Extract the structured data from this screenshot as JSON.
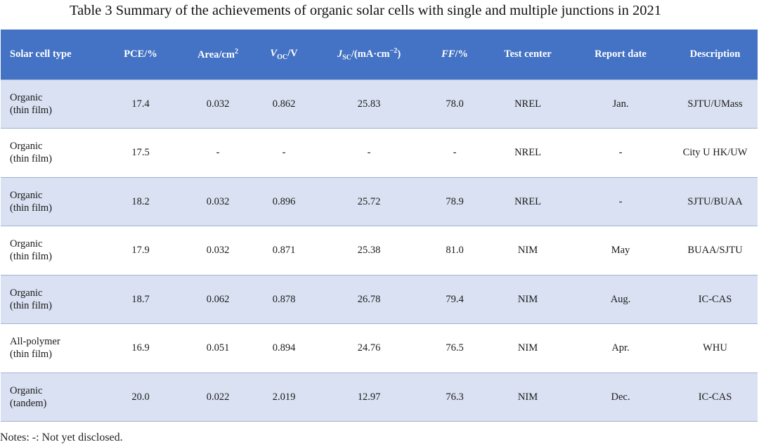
{
  "caption": "Table 3 Summary of the achievements of organic solar cells with single and multiple junctions in 2021",
  "headers": {
    "type": "Solar cell type",
    "pce": "PCE/%",
    "area": "Area/cm",
    "area_sup": "2",
    "voc_main": "V",
    "voc_sub": "OC",
    "voc_unit": "/V",
    "jsc_main": "J",
    "jsc_sub": "SC",
    "jsc_unit": "/(mA·cm",
    "jsc_sup": "−2",
    "jsc_close": ")",
    "ff": "FF",
    "ff_unit": "/%",
    "center": "Test center",
    "date": "Report date",
    "desc": "Description"
  },
  "rows": [
    {
      "type1": "Organic",
      "type2": "(thin film)",
      "pce": "17.4",
      "area": "0.032",
      "voc": "0.862",
      "jsc": "25.83",
      "ff": "78.0",
      "center": "NREL",
      "date": "Jan.",
      "desc": "SJTU/UMass"
    },
    {
      "type1": "Organic",
      "type2": "(thin film)",
      "pce": "17.5",
      "area": "-",
      "voc": "-",
      "jsc": "-",
      "ff": "-",
      "center": "NREL",
      "date": "-",
      "desc": "City U HK/UW"
    },
    {
      "type1": "Organic",
      "type2": "(thin film)",
      "pce": "18.2",
      "area": "0.032",
      "voc": "0.896",
      "jsc": "25.72",
      "ff": "78.9",
      "center": "NREL",
      "date": "-",
      "desc": "SJTU/BUAA"
    },
    {
      "type1": "Organic",
      "type2": "(thin film)",
      "pce": "17.9",
      "area": "0.032",
      "voc": "0.871",
      "jsc": "25.38",
      "ff": "81.0",
      "center": "NIM",
      "date": "May",
      "desc": "BUAA/SJTU"
    },
    {
      "type1": "Organic",
      "type2": "(thin film)",
      "pce": "18.7",
      "area": "0.062",
      "voc": "0.878",
      "jsc": "26.78",
      "ff": "79.4",
      "center": "NIM",
      "date": "Aug.",
      "desc": "IC-CAS"
    },
    {
      "type1": "All-polymer",
      "type2": "(thin film)",
      "pce": "16.9",
      "area": "0.051",
      "voc": "0.894",
      "jsc": "24.76",
      "ff": "76.5",
      "center": "NIM",
      "date": "Apr.",
      "desc": "WHU"
    },
    {
      "type1": "Organic",
      "type2": "(tandem)",
      "pce": "20.0",
      "area": "0.022",
      "voc": "2.019",
      "jsc": "12.97",
      "ff": "76.3",
      "center": "NIM",
      "date": "Dec.",
      "desc": "IC-CAS"
    }
  ],
  "notes": "Notes: -: Not yet disclosed."
}
